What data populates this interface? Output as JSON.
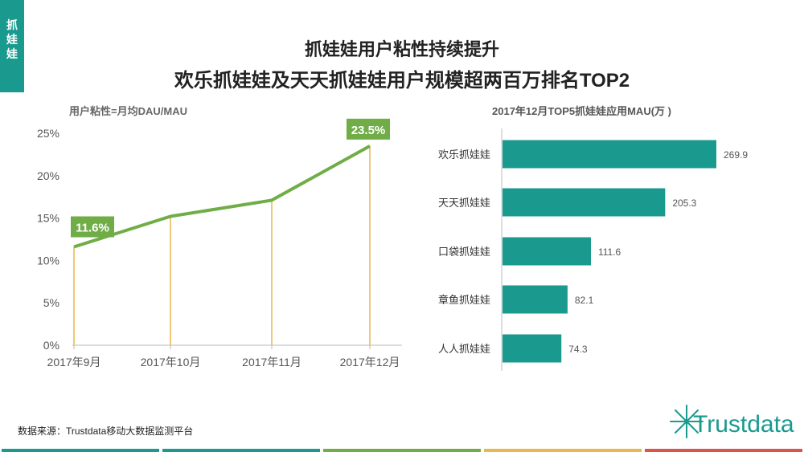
{
  "side_tab": "抓\n娃\n娃",
  "title_line1": "抓娃娃用户粘性持续提升",
  "title_line2": "欢乐抓娃娃及天天抓娃娃用户规模超两百万排名TOP2",
  "source": "数据来源：Trustdata移动大数据监测平台",
  "logo": "Trustdata",
  "colors": {
    "accent": "#1a9a8f",
    "line": "#70ad47",
    "drop": "#e8b84a",
    "bar": "#1a9a8f"
  },
  "chart_data": [
    {
      "type": "line",
      "title": "用户粘性=月均DAU/MAU",
      "categories": [
        "2017年9月",
        "2017年10月",
        "2017年11月",
        "2017年12月"
      ],
      "values": [
        11.6,
        15.2,
        17.1,
        23.5
      ],
      "labeled_points": [
        {
          "index": 0,
          "label": "11.6%"
        },
        {
          "index": 3,
          "label": "23.5%"
        }
      ],
      "y_ticks": [
        "0%",
        "5%",
        "10%",
        "15%",
        "20%",
        "25%"
      ],
      "ylim": [
        0,
        25
      ]
    },
    {
      "type": "bar",
      "orientation": "horizontal",
      "title": "2017年12月TOP5抓娃娃应用MAU(万 )",
      "categories": [
        "欢乐抓娃娃",
        "天天抓娃娃",
        "口袋抓娃娃",
        "章鱼抓娃娃",
        "人人抓娃娃"
      ],
      "values": [
        269.9,
        205.3,
        111.6,
        82.1,
        74.3
      ],
      "value_labels": [
        "269.9",
        "205.3",
        "111.6",
        "82.1",
        "74.3"
      ]
    }
  ],
  "footer_colors": [
    "#1a9a8f",
    "#1a9a8f",
    "#70ad47",
    "#e8b84a",
    "#d9534f"
  ]
}
